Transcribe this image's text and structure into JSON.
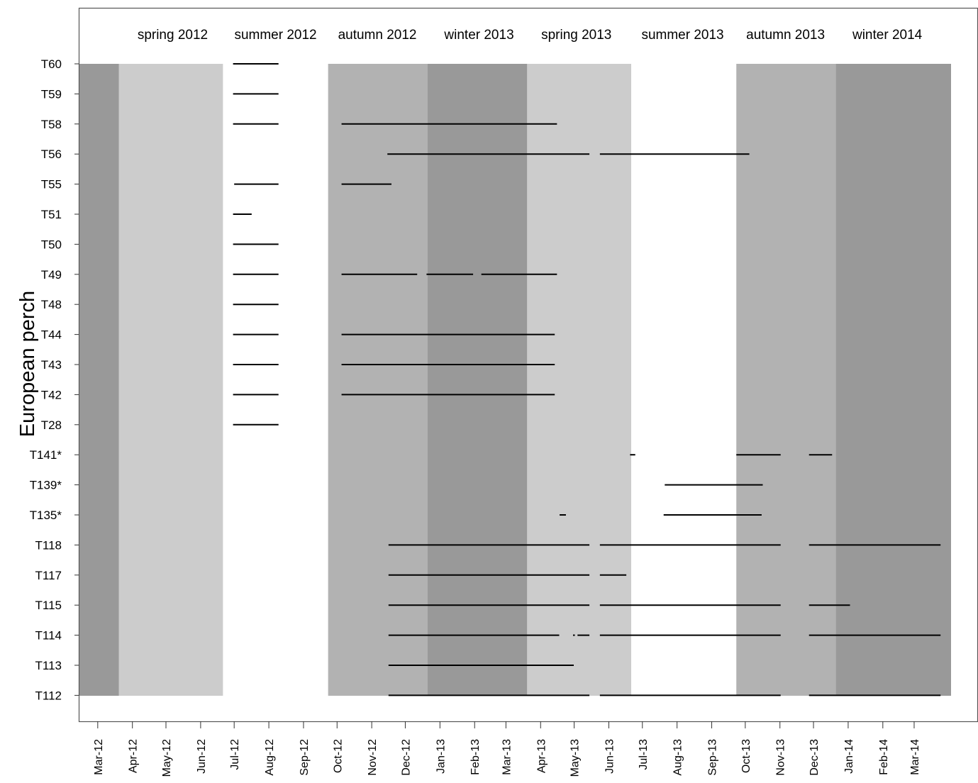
{
  "chart_data": {
    "type": "timeline",
    "ylabel": "European perch",
    "xlim": [
      "2012-02-13",
      "2014-04-03"
    ],
    "x_tick_labels": [
      "Mar-12",
      "Apr-12",
      "May-12",
      "Jun-12",
      "Jul-12",
      "Aug-12",
      "Sep-12",
      "Oct-12",
      "Nov-12",
      "Dec-12",
      "Jan-13",
      "Feb-13",
      "Mar-13",
      "Apr-13",
      "May-13",
      "Jun-13",
      "Jul-13",
      "Aug-13",
      "Sep-13",
      "Oct-13",
      "Nov-13",
      "Dec-13",
      "Jan-14",
      "Feb-14",
      "Mar-14"
    ],
    "x_ticks": [
      "2012-03-01",
      "2012-04-01",
      "2012-05-01",
      "2012-06-01",
      "2012-07-01",
      "2012-08-01",
      "2012-09-01",
      "2012-10-01",
      "2012-11-01",
      "2012-12-01",
      "2013-01-01",
      "2013-02-01",
      "2013-03-01",
      "2013-04-01",
      "2013-05-01",
      "2013-06-01",
      "2013-07-01",
      "2013-08-01",
      "2013-09-01",
      "2013-10-01",
      "2013-11-01",
      "2013-12-01",
      "2014-01-01",
      "2014-02-01",
      "2014-03-01"
    ],
    "season_bands": [
      {
        "start": "2012-02-13",
        "end": "2012-03-20",
        "color": "#999999"
      },
      {
        "start": "2012-03-20",
        "end": "2012-06-21",
        "color": "#cccccc"
      },
      {
        "start": "2012-06-21",
        "end": "2012-09-23",
        "color": "#ffffff"
      },
      {
        "start": "2012-09-23",
        "end": "2012-12-21",
        "color": "#b2b2b2"
      },
      {
        "start": "2012-12-21",
        "end": "2013-03-20",
        "color": "#999999"
      },
      {
        "start": "2013-03-20",
        "end": "2013-06-21",
        "color": "#cccccc"
      },
      {
        "start": "2013-06-21",
        "end": "2013-09-23",
        "color": "#ffffff"
      },
      {
        "start": "2013-09-23",
        "end": "2013-12-21",
        "color": "#b2b2b2"
      },
      {
        "start": "2013-12-21",
        "end": "2014-04-03",
        "color": "#999999"
      }
    ],
    "season_labels": [
      {
        "text": "spring 2012",
        "center": "2012-05-07"
      },
      {
        "text": "summer 2012",
        "center": "2012-08-07"
      },
      {
        "text": "autumn 2012",
        "center": "2012-11-06"
      },
      {
        "text": "winter 2013",
        "center": "2013-02-05"
      },
      {
        "text": "spring 2013",
        "center": "2013-05-03"
      },
      {
        "text": "summer 2013",
        "center": "2013-08-06"
      },
      {
        "text": "autumn 2013",
        "center": "2013-11-06"
      },
      {
        "text": "winter 2014",
        "center": "2014-02-05"
      }
    ],
    "rows": [
      {
        "label": "T60",
        "segments": [
          [
            "2012-06-30",
            "2012-08-09"
          ]
        ]
      },
      {
        "label": "T59",
        "segments": [
          [
            "2012-06-30",
            "2012-08-09"
          ]
        ]
      },
      {
        "label": "T58",
        "segments": [
          [
            "2012-06-30",
            "2012-08-09"
          ],
          [
            "2012-10-05",
            "2013-04-15"
          ]
        ]
      },
      {
        "label": "T56",
        "segments": [
          [
            "2012-11-15",
            "2013-05-14"
          ],
          [
            "2013-05-24",
            "2013-10-04"
          ]
        ]
      },
      {
        "label": "T55",
        "segments": [
          [
            "2012-07-01",
            "2012-08-09"
          ],
          [
            "2012-10-05",
            "2012-11-18"
          ]
        ]
      },
      {
        "label": "T51",
        "segments": [
          [
            "2012-06-30",
            "2012-07-16"
          ]
        ]
      },
      {
        "label": "T50",
        "segments": [
          [
            "2012-06-30",
            "2012-08-09"
          ]
        ]
      },
      {
        "label": "T49",
        "segments": [
          [
            "2012-06-30",
            "2012-08-09"
          ],
          [
            "2012-10-05",
            "2012-12-11"
          ],
          [
            "2012-12-20",
            "2013-01-30"
          ],
          [
            "2013-02-07",
            "2013-04-15"
          ]
        ]
      },
      {
        "label": "T48",
        "segments": [
          [
            "2012-06-30",
            "2012-08-09"
          ]
        ]
      },
      {
        "label": "T44",
        "segments": [
          [
            "2012-06-30",
            "2012-08-09"
          ],
          [
            "2012-10-05",
            "2013-04-13"
          ]
        ]
      },
      {
        "label": "T43",
        "segments": [
          [
            "2012-06-30",
            "2012-08-09"
          ],
          [
            "2012-10-05",
            "2013-04-13"
          ]
        ]
      },
      {
        "label": "T42",
        "segments": [
          [
            "2012-06-30",
            "2012-08-09"
          ],
          [
            "2012-10-05",
            "2013-04-13"
          ]
        ]
      },
      {
        "label": "T28",
        "segments": [
          [
            "2012-06-30",
            "2012-08-09"
          ]
        ]
      },
      {
        "label": "T141*",
        "segments": [
          [
            "2013-06-20",
            "2013-06-24"
          ],
          [
            "2013-09-23",
            "2013-11-01"
          ],
          [
            "2013-11-27",
            "2013-12-17"
          ]
        ]
      },
      {
        "label": "T139*",
        "segments": [
          [
            "2013-07-21",
            "2013-10-16"
          ]
        ]
      },
      {
        "label": "T135*",
        "segments": [
          [
            "2013-04-18",
            "2013-04-23"
          ],
          [
            "2013-07-20",
            "2013-10-15"
          ]
        ]
      },
      {
        "label": "T118",
        "segments": [
          [
            "2012-11-16",
            "2013-05-14"
          ],
          [
            "2013-05-24",
            "2013-11-01"
          ],
          [
            "2013-11-27",
            "2014-03-24"
          ]
        ]
      },
      {
        "label": "T117",
        "segments": [
          [
            "2012-11-16",
            "2013-05-14"
          ],
          [
            "2013-05-24",
            "2013-06-16"
          ]
        ]
      },
      {
        "label": "T115",
        "segments": [
          [
            "2012-11-16",
            "2013-05-14"
          ],
          [
            "2013-05-24",
            "2013-11-01"
          ],
          [
            "2013-11-27",
            "2014-01-02"
          ]
        ]
      },
      {
        "label": "T114",
        "segments": [
          [
            "2012-11-16",
            "2013-04-17"
          ],
          [
            "2013-04-30",
            "2013-05-01"
          ],
          [
            "2013-05-04",
            "2013-05-14"
          ],
          [
            "2013-05-24",
            "2013-11-01"
          ],
          [
            "2013-11-27",
            "2014-03-24"
          ]
        ]
      },
      {
        "label": "T113",
        "segments": [
          [
            "2012-11-16",
            "2013-04-30"
          ]
        ]
      },
      {
        "label": "T112",
        "segments": [
          [
            "2012-11-16",
            "2013-05-14"
          ],
          [
            "2013-05-24",
            "2013-11-01"
          ],
          [
            "2013-11-27",
            "2014-03-24"
          ]
        ]
      }
    ]
  }
}
